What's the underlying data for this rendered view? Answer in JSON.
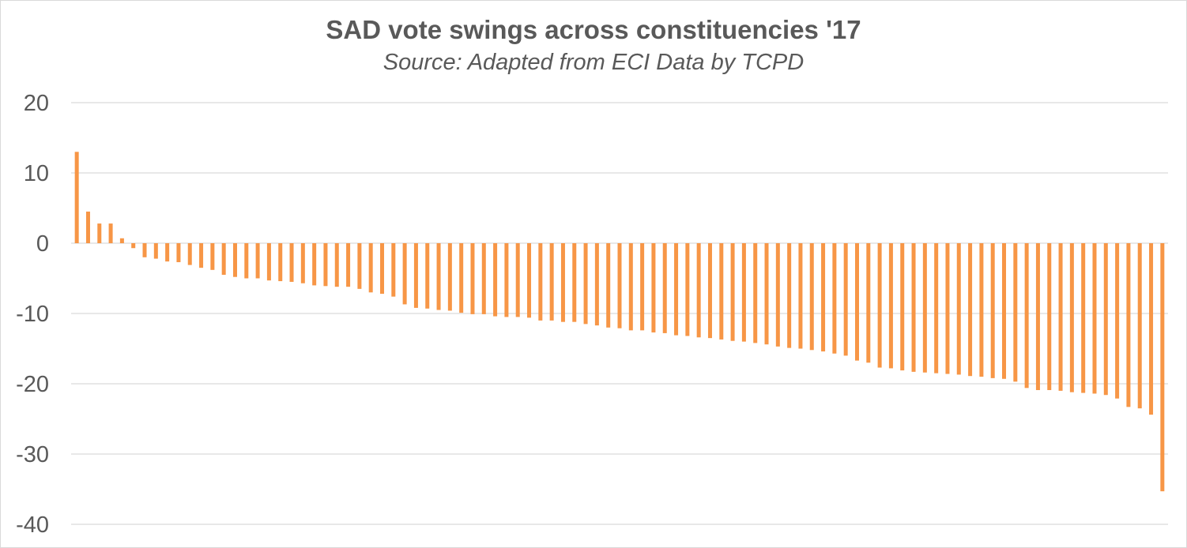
{
  "colors": {
    "bar": "#F79646",
    "grid": "#d9d9d9",
    "text": "#595959"
  },
  "chart_data": {
    "type": "bar",
    "title": "SAD vote swings across constituencies '17",
    "subtitle": "Source: Adapted from ECI Data by TCPD",
    "xlabel": "",
    "ylabel": "",
    "ylim": [
      -40,
      20
    ],
    "yticks": [
      20,
      10,
      0,
      -10,
      -20,
      -30,
      -40
    ],
    "grid": true,
    "legend": "none",
    "values": [
      13.0,
      4.5,
      2.8,
      2.8,
      0.7,
      -0.7,
      -2.0,
      -2.2,
      -2.6,
      -2.7,
      -3.1,
      -3.5,
      -3.8,
      -4.5,
      -4.8,
      -5.0,
      -5.0,
      -5.3,
      -5.4,
      -5.5,
      -5.7,
      -6.0,
      -6.1,
      -6.2,
      -6.2,
      -6.5,
      -7.0,
      -7.2,
      -7.6,
      -8.7,
      -9.2,
      -9.3,
      -9.5,
      -9.6,
      -9.9,
      -10.1,
      -10.1,
      -10.4,
      -10.5,
      -10.5,
      -10.6,
      -11.0,
      -11.0,
      -11.2,
      -11.2,
      -11.5,
      -11.7,
      -12.0,
      -12.1,
      -12.4,
      -12.4,
      -12.7,
      -12.8,
      -13.1,
      -13.2,
      -13.4,
      -13.5,
      -13.7,
      -13.9,
      -14.0,
      -14.2,
      -14.4,
      -14.7,
      -14.9,
      -15.0,
      -15.2,
      -15.4,
      -15.7,
      -16.0,
      -16.7,
      -17.0,
      -17.7,
      -17.8,
      -18.1,
      -18.3,
      -18.4,
      -18.5,
      -18.6,
      -18.7,
      -18.9,
      -19.0,
      -19.2,
      -19.3,
      -19.7,
      -20.6,
      -20.9,
      -20.9,
      -21.0,
      -21.2,
      -21.3,
      -21.4,
      -21.6,
      -22.1,
      -23.3,
      -23.5,
      -24.4,
      -35.3
    ]
  }
}
